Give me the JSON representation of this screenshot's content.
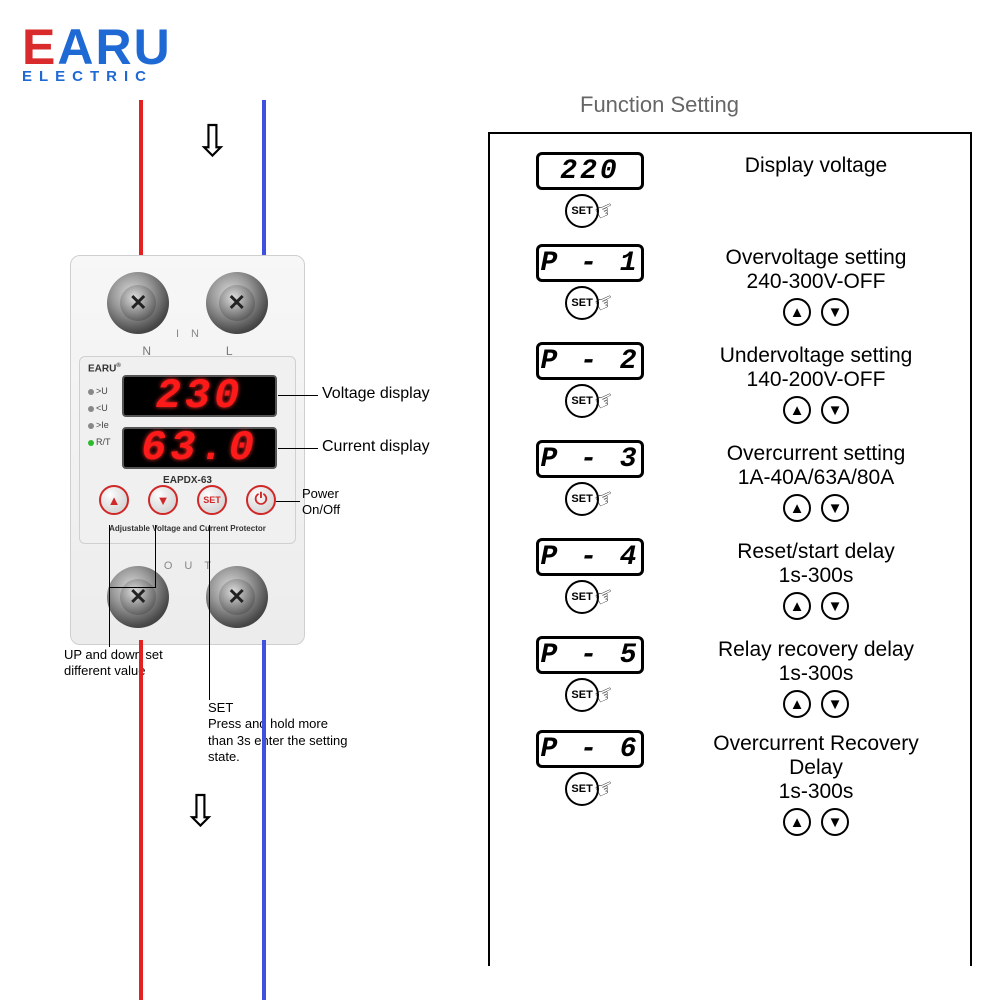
{
  "logo": {
    "brand_prefix": "E",
    "brand_rest": "ARU",
    "tagline": "ELECTRIC"
  },
  "device": {
    "brand_tiny": "EARU",
    "model": "EAPDX-63",
    "voltage_reading": "230",
    "current_reading": "63.0",
    "n_label": "N",
    "l_label": "L",
    "in_label": "IN",
    "out_label": "OUT",
    "leds": {
      "ou": ">U",
      "uu": "<U",
      "ie": ">Ie",
      "rt": "R/T"
    },
    "buttons": {
      "up": "▲",
      "down": "▼",
      "set": "SET",
      "power": "⏻"
    },
    "subline": "Adjustable Voltage and Current Protector"
  },
  "callouts": {
    "voltage_display": "Voltage display",
    "current_display": "Current display",
    "power_onoff": "Power\nOn/Off",
    "updown_note": "UP and down set\ndifferent value",
    "set_note": "SET\nPress and hold more\nthan 3s enter the setting\nstate."
  },
  "function_setting": {
    "title": "Function Setting",
    "set_label": "SET",
    "items": [
      {
        "code": "220",
        "label": "Display voltage",
        "range": "",
        "has_updown": false
      },
      {
        "code": "P - 1",
        "label": "Overvoltage setting",
        "range": "240-300V-OFF",
        "has_updown": true
      },
      {
        "code": "P - 2",
        "label": "Undervoltage setting",
        "range": "140-200V-OFF",
        "has_updown": true
      },
      {
        "code": "P - 3",
        "label": "Overcurrent setting",
        "range": "1A-40A/63A/80A",
        "has_updown": true
      },
      {
        "code": "P - 4",
        "label": "Reset/start delay",
        "range": "1s-300s",
        "has_updown": true
      },
      {
        "code": "P - 5",
        "label": "Relay recovery delay",
        "range": "1s-300s",
        "has_updown": true
      },
      {
        "code": "P - 6",
        "label": "Overcurrent Recovery Delay",
        "range": "1s-300s",
        "has_updown": true
      }
    ]
  },
  "colors": {
    "wire_red": "#e52020",
    "wire_blue": "#3f4fe0",
    "logo_blue": "#1f69d4",
    "logo_red": "#d92b2b",
    "led_red": "#ff1a1a",
    "btn_red": "#d02828"
  }
}
